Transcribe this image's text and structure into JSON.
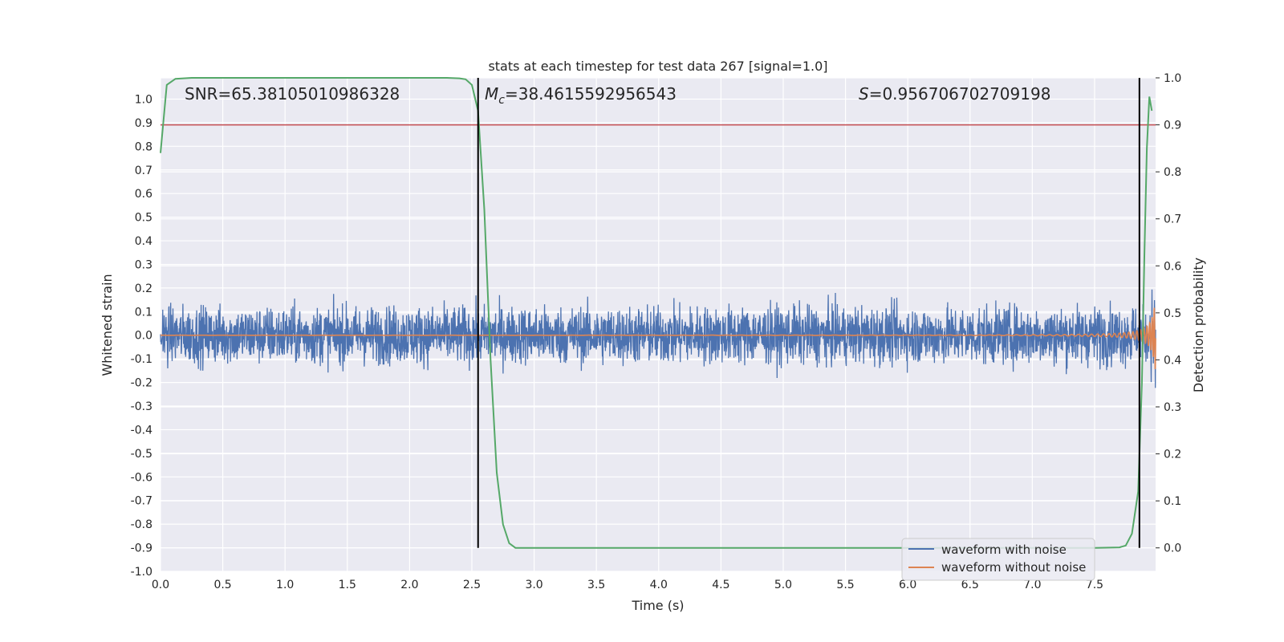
{
  "chart_data": {
    "type": "line",
    "title": "stats at each timestep for test data 267 [signal=1.0]",
    "xlabel": "Time (s)",
    "ylabel_left": "Whitened strain",
    "ylabel_right": "Detection probability",
    "xlim": [
      0.0,
      7.99
    ],
    "ylim_left": [
      -1.0,
      1.09
    ],
    "ylim_right": [
      -0.05,
      1.0
    ],
    "x_ticks": [
      "0.0",
      "0.5",
      "1.0",
      "1.5",
      "2.0",
      "2.5",
      "3.0",
      "3.5",
      "4.0",
      "4.5",
      "5.0",
      "5.5",
      "6.0",
      "6.5",
      "7.0",
      "7.5"
    ],
    "y_ticks_left": [
      "1.0",
      "0.9",
      "0.8",
      "0.7",
      "0.6",
      "0.5",
      "0.4",
      "0.3",
      "0.2",
      "0.1",
      "0.0",
      "-0.1",
      "-0.2",
      "-0.3",
      "-0.4",
      "-0.5",
      "-0.6",
      "-0.7",
      "-0.8",
      "-0.9",
      "-1.0"
    ],
    "y_ticks_right": [
      "1.0",
      "0.9",
      "0.8",
      "0.7",
      "0.6",
      "0.5",
      "0.4",
      "0.3",
      "0.2",
      "0.1",
      "0.0"
    ],
    "grid": true,
    "annotations": {
      "snr": "SNR=65.38105010986328",
      "mc_symbol": "M",
      "mc_sub": "c",
      "mc_value": "=38.4615592956543",
      "s_symbol": "S",
      "s_value": "=0.956706702709198"
    },
    "legend": {
      "placement": "lower-right",
      "entries": [
        "waveform with noise",
        "waveform without noise"
      ]
    },
    "colors": {
      "noise": "#4c72b0",
      "clean": "#dd8452",
      "probability": "#55a868",
      "threshold": "#c44e52",
      "vlines": "#000000",
      "axes_bg": "#eaeaf2"
    },
    "threshold_probability": 0.9,
    "vertical_lines_time": [
      2.55,
      7.86
    ],
    "signal_noise_amplitude": 0.1,
    "detection_probability": {
      "x": [
        0.0,
        0.05,
        0.12,
        0.25,
        0.5,
        1.0,
        1.5,
        2.0,
        2.3,
        2.4,
        2.45,
        2.5,
        2.55,
        2.6,
        2.65,
        2.7,
        2.75,
        2.8,
        2.85,
        3.0,
        4.0,
        5.0,
        6.0,
        7.0,
        7.5,
        7.7,
        7.75,
        7.8,
        7.85,
        7.88,
        7.9,
        7.92,
        7.94,
        7.96
      ],
      "y": [
        0.84,
        0.985,
        0.998,
        1.0,
        1.0,
        1.0,
        1.0,
        1.0,
        1.0,
        0.999,
        0.997,
        0.985,
        0.93,
        0.72,
        0.4,
        0.16,
        0.05,
        0.01,
        0.0,
        0.0,
        0.0,
        0.0,
        0.0,
        0.0,
        0.0,
        0.001,
        0.005,
        0.03,
        0.12,
        0.35,
        0.62,
        0.85,
        0.96,
        0.93
      ]
    }
  }
}
